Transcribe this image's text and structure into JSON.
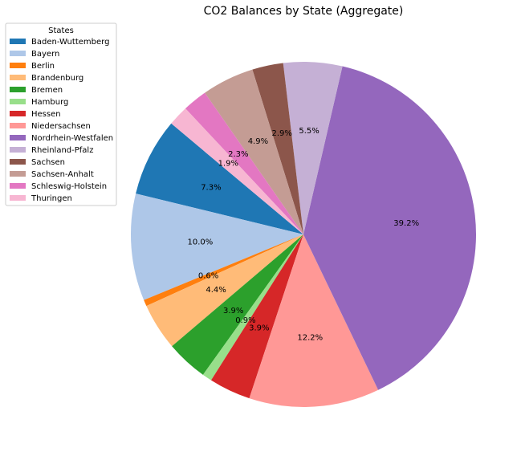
{
  "chart_data": {
    "type": "pie",
    "title": "CO2 Balances by State (Aggregate)",
    "legend": {
      "title": "States",
      "placement": "upper-left"
    },
    "start_angle_deg": 140,
    "direction": "counterclockwise",
    "slices": [
      {
        "label": "Baden-Wuttemberg",
        "value": 7.3,
        "pct_label": "7.3%",
        "color": "#1f77b4"
      },
      {
        "label": "Bayern",
        "value": 10.0,
        "pct_label": "10.0%",
        "color": "#aec7e8"
      },
      {
        "label": "Berlin",
        "value": 0.6,
        "pct_label": "0.6%",
        "color": "#ff7f0e"
      },
      {
        "label": "Brandenburg",
        "value": 4.4,
        "pct_label": "4.4%",
        "color": "#ffbb78"
      },
      {
        "label": "Bremen",
        "value": 3.9,
        "pct_label": "3.9%",
        "color": "#2ca02c"
      },
      {
        "label": "Hamburg",
        "value": 0.9,
        "pct_label": "0.9%",
        "color": "#98df8a"
      },
      {
        "label": "Hessen",
        "value": 3.9,
        "pct_label": "3.9%",
        "color": "#d62728"
      },
      {
        "label": "Niedersachsen",
        "value": 12.2,
        "pct_label": "12.2%",
        "color": "#ff9896"
      },
      {
        "label": "Nordrhein-Westfalen",
        "value": 39.2,
        "pct_label": "39.2%",
        "color": "#9467bd"
      },
      {
        "label": "Rheinland-Pfalz",
        "value": 5.5,
        "pct_label": "5.5%",
        "color": "#c5b0d5"
      },
      {
        "label": "Sachsen",
        "value": 2.9,
        "pct_label": "2.9%",
        "color": "#8c564b"
      },
      {
        "label": "Sachsen-Anhalt",
        "value": 4.9,
        "pct_label": "4.9%",
        "color": "#c49c94"
      },
      {
        "label": "Schleswig-Holstein",
        "value": 2.3,
        "pct_label": "2.3%",
        "color": "#e377c2"
      },
      {
        "label": "Thuringen",
        "value": 1.9,
        "pct_label": "1.9%",
        "color": "#f7b6d2"
      }
    ]
  }
}
